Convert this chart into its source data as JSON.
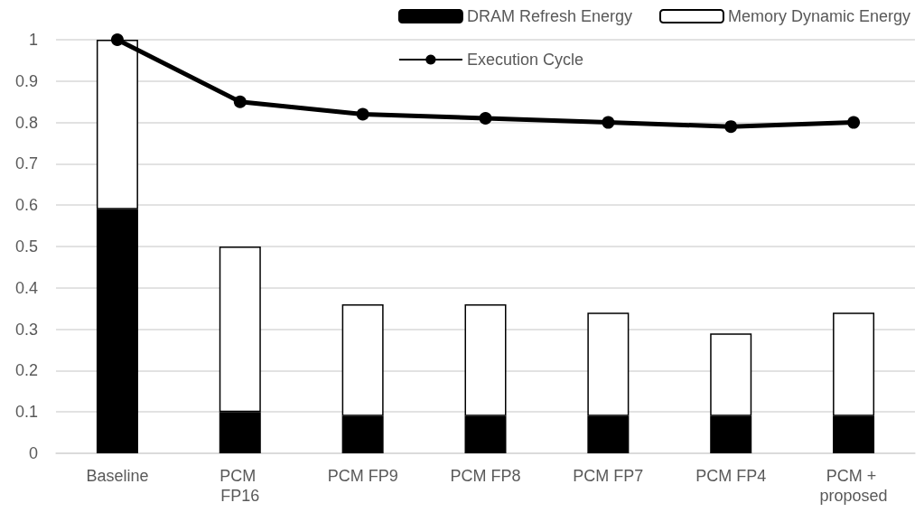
{
  "chart_data": {
    "type": "bar",
    "stacked": true,
    "categories": [
      "Baseline",
      "PCM FP16",
      "PCM FP9",
      "PCM FP8",
      "PCM FP7",
      "PCM FP4",
      "PCM + proposed"
    ],
    "series": [
      {
        "name": "DRAM Refresh Energy",
        "color": "#000000",
        "values": [
          0.59,
          0.1,
          0.09,
          0.09,
          0.09,
          0.09,
          0.09
        ]
      },
      {
        "name": "Memory Dynamic Energy",
        "color": "#ffffff",
        "values": [
          0.41,
          0.4,
          0.27,
          0.27,
          0.25,
          0.2,
          0.25
        ]
      },
      {
        "name": "Execution Cycle",
        "type": "line",
        "color": "#000000",
        "marker": "circle",
        "values": [
          1.0,
          0.85,
          0.82,
          0.81,
          0.8,
          0.79,
          0.8
        ]
      }
    ],
    "ylim": [
      0,
      1
    ],
    "yticks": [
      0,
      0.1,
      0.2,
      0.3,
      0.4,
      0.5,
      0.6,
      0.7,
      0.8,
      0.9,
      1
    ],
    "grid": "y",
    "legend": "top right"
  }
}
